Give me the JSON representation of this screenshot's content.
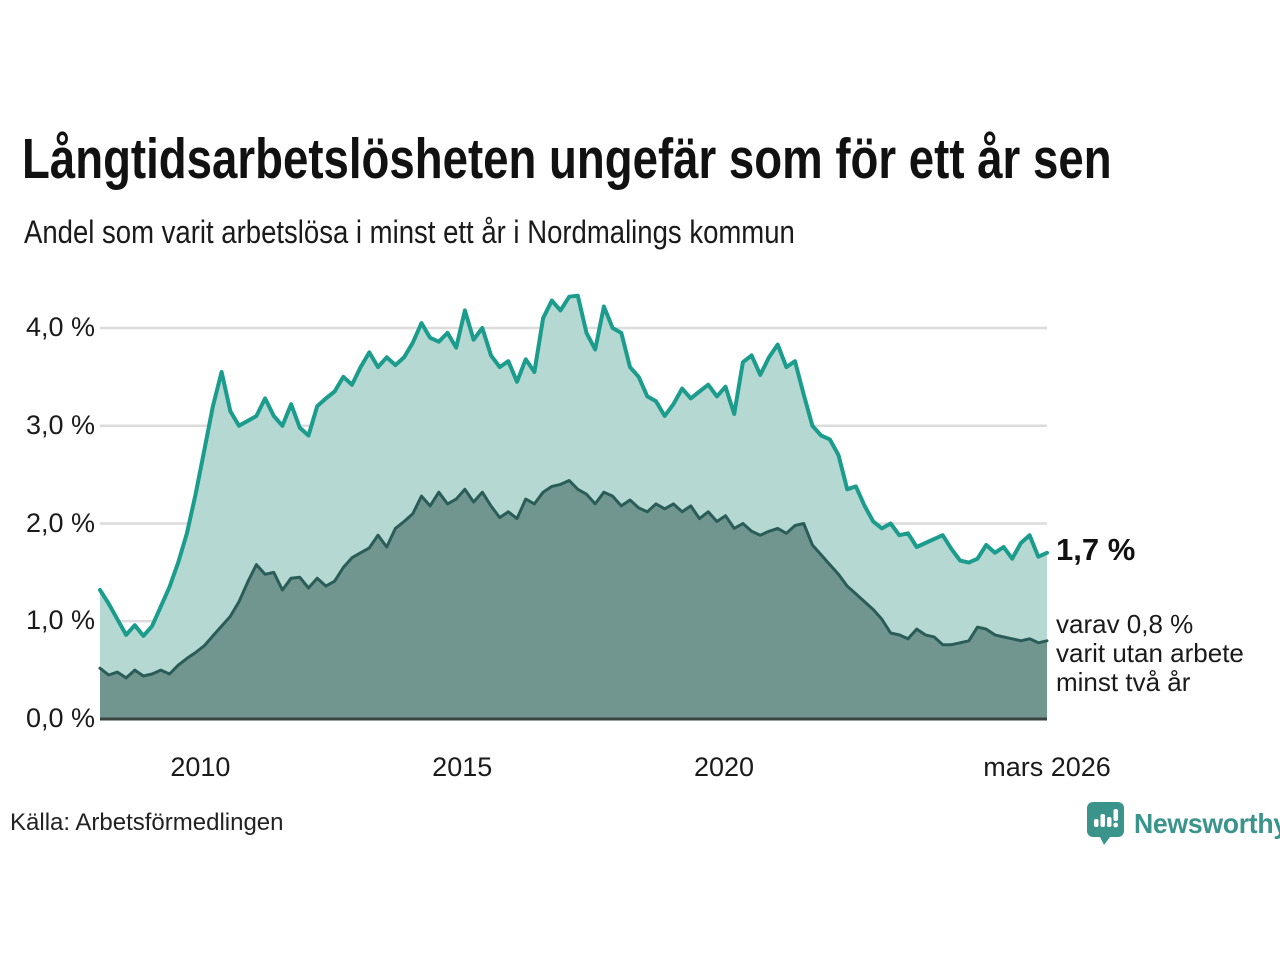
{
  "header": {
    "title": "Långtidsarbetslösheten ungefär som för ett år sen",
    "subtitle": "Andel som varit arbetslösa i minst ett år i Nordmalings kommun"
  },
  "chart_data": {
    "type": "area",
    "title": "Långtidsarbetslösheten ungefär som för ett år sen",
    "subtitle": "Andel som varit arbetslösa i minst ett år i Nordmalings kommun",
    "x_min": 2008.083,
    "x_max": 2026.167,
    "ylim": [
      0.0,
      4.0
    ],
    "grid": true,
    "y_ticks": [
      {
        "label": "4,0 %",
        "value": 4.0
      },
      {
        "label": "3,0 %",
        "value": 3.0
      },
      {
        "label": "2,0 %",
        "value": 2.0
      },
      {
        "label": "1,0 %",
        "value": 1.0
      },
      {
        "label": "0,0 %",
        "value": 0.0
      }
    ],
    "x_ticks": [
      {
        "label": "2010",
        "value": 2010
      },
      {
        "label": "2015",
        "value": 2015
      },
      {
        "label": "2020",
        "value": 2020
      },
      {
        "label": "mars 2026",
        "value": 2026.167
      }
    ],
    "series": [
      {
        "name": "arbetslösa i minst ett år",
        "line_color": "#1b9c8c",
        "fill_color": "#b5d9d2",
        "line_width": 4,
        "values": [
          1.32,
          1.18,
          1.02,
          0.86,
          0.96,
          0.85,
          0.95,
          1.15,
          1.35,
          1.6,
          1.9,
          2.3,
          2.75,
          3.2,
          3.55,
          3.15,
          3.0,
          3.05,
          3.1,
          3.28,
          3.1,
          3.0,
          3.22,
          2.98,
          2.9,
          3.2,
          3.28,
          3.35,
          3.5,
          3.42,
          3.6,
          3.75,
          3.6,
          3.7,
          3.62,
          3.7,
          3.85,
          4.05,
          3.9,
          3.86,
          3.95,
          3.8,
          4.18,
          3.88,
          4.0,
          3.72,
          3.6,
          3.66,
          3.45,
          3.68,
          3.55,
          4.1,
          4.28,
          4.18,
          4.32,
          4.33,
          3.95,
          3.78,
          4.22,
          4.0,
          3.95,
          3.6,
          3.5,
          3.3,
          3.25,
          3.1,
          3.22,
          3.38,
          3.28,
          3.35,
          3.42,
          3.3,
          3.4,
          3.12,
          3.65,
          3.72,
          3.52,
          3.7,
          3.83,
          3.6,
          3.66,
          3.32,
          3.0,
          2.9,
          2.86,
          2.7,
          2.35,
          2.38,
          2.18,
          2.02,
          1.95,
          2.0,
          1.88,
          1.9,
          1.76,
          1.8,
          1.84,
          1.88,
          1.74,
          1.62,
          1.6,
          1.64,
          1.78,
          1.7,
          1.76,
          1.64,
          1.8,
          1.88,
          1.66,
          1.7
        ]
      },
      {
        "name": "varit utan arbete minst två år",
        "line_color": "#2a5d57",
        "fill_color": "#719690",
        "line_width": 3,
        "values": [
          0.52,
          0.45,
          0.48,
          0.42,
          0.5,
          0.44,
          0.46,
          0.5,
          0.46,
          0.55,
          0.62,
          0.68,
          0.75,
          0.85,
          0.95,
          1.05,
          1.2,
          1.4,
          1.58,
          1.48,
          1.5,
          1.32,
          1.44,
          1.45,
          1.34,
          1.44,
          1.36,
          1.41,
          1.55,
          1.65,
          1.7,
          1.75,
          1.88,
          1.76,
          1.95,
          2.02,
          2.1,
          2.28,
          2.18,
          2.32,
          2.2,
          2.25,
          2.35,
          2.22,
          2.32,
          2.18,
          2.06,
          2.12,
          2.05,
          2.25,
          2.2,
          2.32,
          2.38,
          2.4,
          2.44,
          2.35,
          2.3,
          2.2,
          2.32,
          2.28,
          2.18,
          2.24,
          2.16,
          2.12,
          2.2,
          2.15,
          2.2,
          2.12,
          2.18,
          2.05,
          2.12,
          2.02,
          2.08,
          1.95,
          2.0,
          1.92,
          1.88,
          1.92,
          1.95,
          1.9,
          1.98,
          2.0,
          1.78,
          1.68,
          1.58,
          1.48,
          1.36,
          1.28,
          1.2,
          1.12,
          1.02,
          0.88,
          0.86,
          0.82,
          0.92,
          0.86,
          0.84,
          0.76,
          0.76,
          0.78,
          0.8,
          0.94,
          0.92,
          0.86,
          0.84,
          0.82,
          0.8,
          0.82,
          0.78,
          0.8
        ]
      }
    ],
    "annotations": {
      "end_value_label": "1,7 %",
      "sub_lines": [
        "varav 0,8 %",
        "varit utan arbete",
        "minst två år"
      ]
    },
    "legend_position": "none",
    "colors": {
      "grid": "#dcdcdc",
      "baseline": "#3a4542",
      "brand_teal": "#3a948c"
    }
  },
  "footer": {
    "source": "Källa: Arbetsförmedlingen",
    "brand": "Newsworthy"
  }
}
